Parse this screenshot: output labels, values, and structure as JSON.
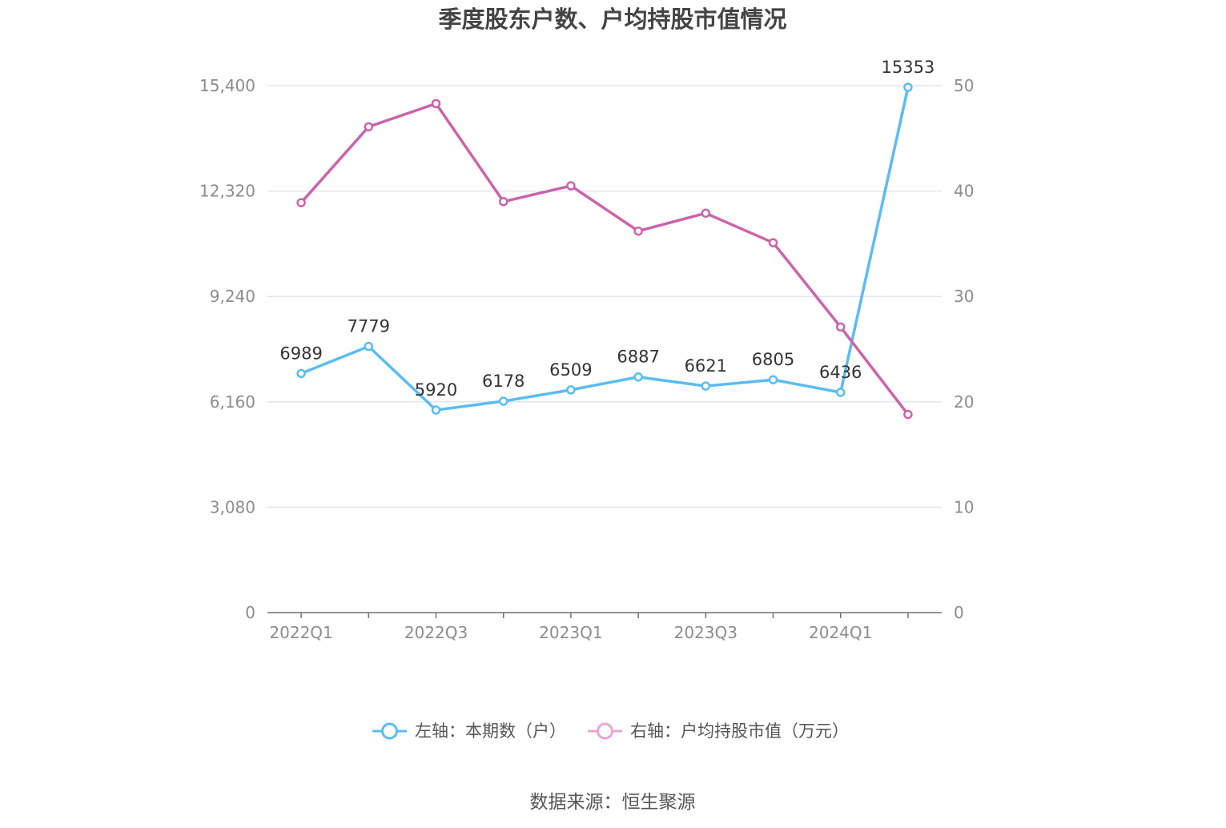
{
  "chart_data": {
    "type": "line",
    "title": "季度股东户数、户均持股市值情况",
    "categories": [
      "2022Q1",
      "2022Q2",
      "2022Q3",
      "2022Q4",
      "2023Q1",
      "2023Q2",
      "2023Q3",
      "2023Q4",
      "2024Q1",
      "2024Q2"
    ],
    "x_tick_labels": [
      "2022Q1",
      "",
      "2022Q3",
      "",
      "2023Q1",
      "",
      "2023Q3",
      "",
      "2024Q1",
      ""
    ],
    "left_axis": {
      "ylim": [
        0,
        15400
      ],
      "ticks": [
        0,
        3080,
        6160,
        9240,
        12320,
        15400
      ],
      "tick_labels": [
        "0",
        "3,080",
        "6,160",
        "9,240",
        "12,320",
        "15,400"
      ]
    },
    "right_axis": {
      "ylim": [
        0,
        50
      ],
      "ticks": [
        0,
        10,
        20,
        30,
        40,
        50
      ],
      "tick_labels": [
        "0",
        "10",
        "20",
        "30",
        "40",
        "50"
      ]
    },
    "grid": true,
    "legend_position": "bottom-center",
    "series": [
      {
        "name": "左轴：本期数（户）",
        "axis": "left",
        "color": "#5bbcf0",
        "values": [
          6989,
          7779,
          5920,
          6178,
          6509,
          6887,
          6621,
          6805,
          6436,
          15353
        ],
        "data_labels": [
          "6989",
          "7779",
          "5920",
          "6178",
          "6509",
          "6887",
          "6621",
          "6805",
          "6436",
          "15353"
        ]
      },
      {
        "name": "右轴：户均持股市值（万元）",
        "axis": "right",
        "color": "#cc63aa",
        "legend_color": "#e9a6d0",
        "values": [
          38.9,
          46.1,
          48.3,
          39.0,
          40.5,
          36.2,
          37.9,
          35.1,
          27.1,
          18.8
        ]
      }
    ]
  },
  "source_text": "数据来源：恒生聚源"
}
